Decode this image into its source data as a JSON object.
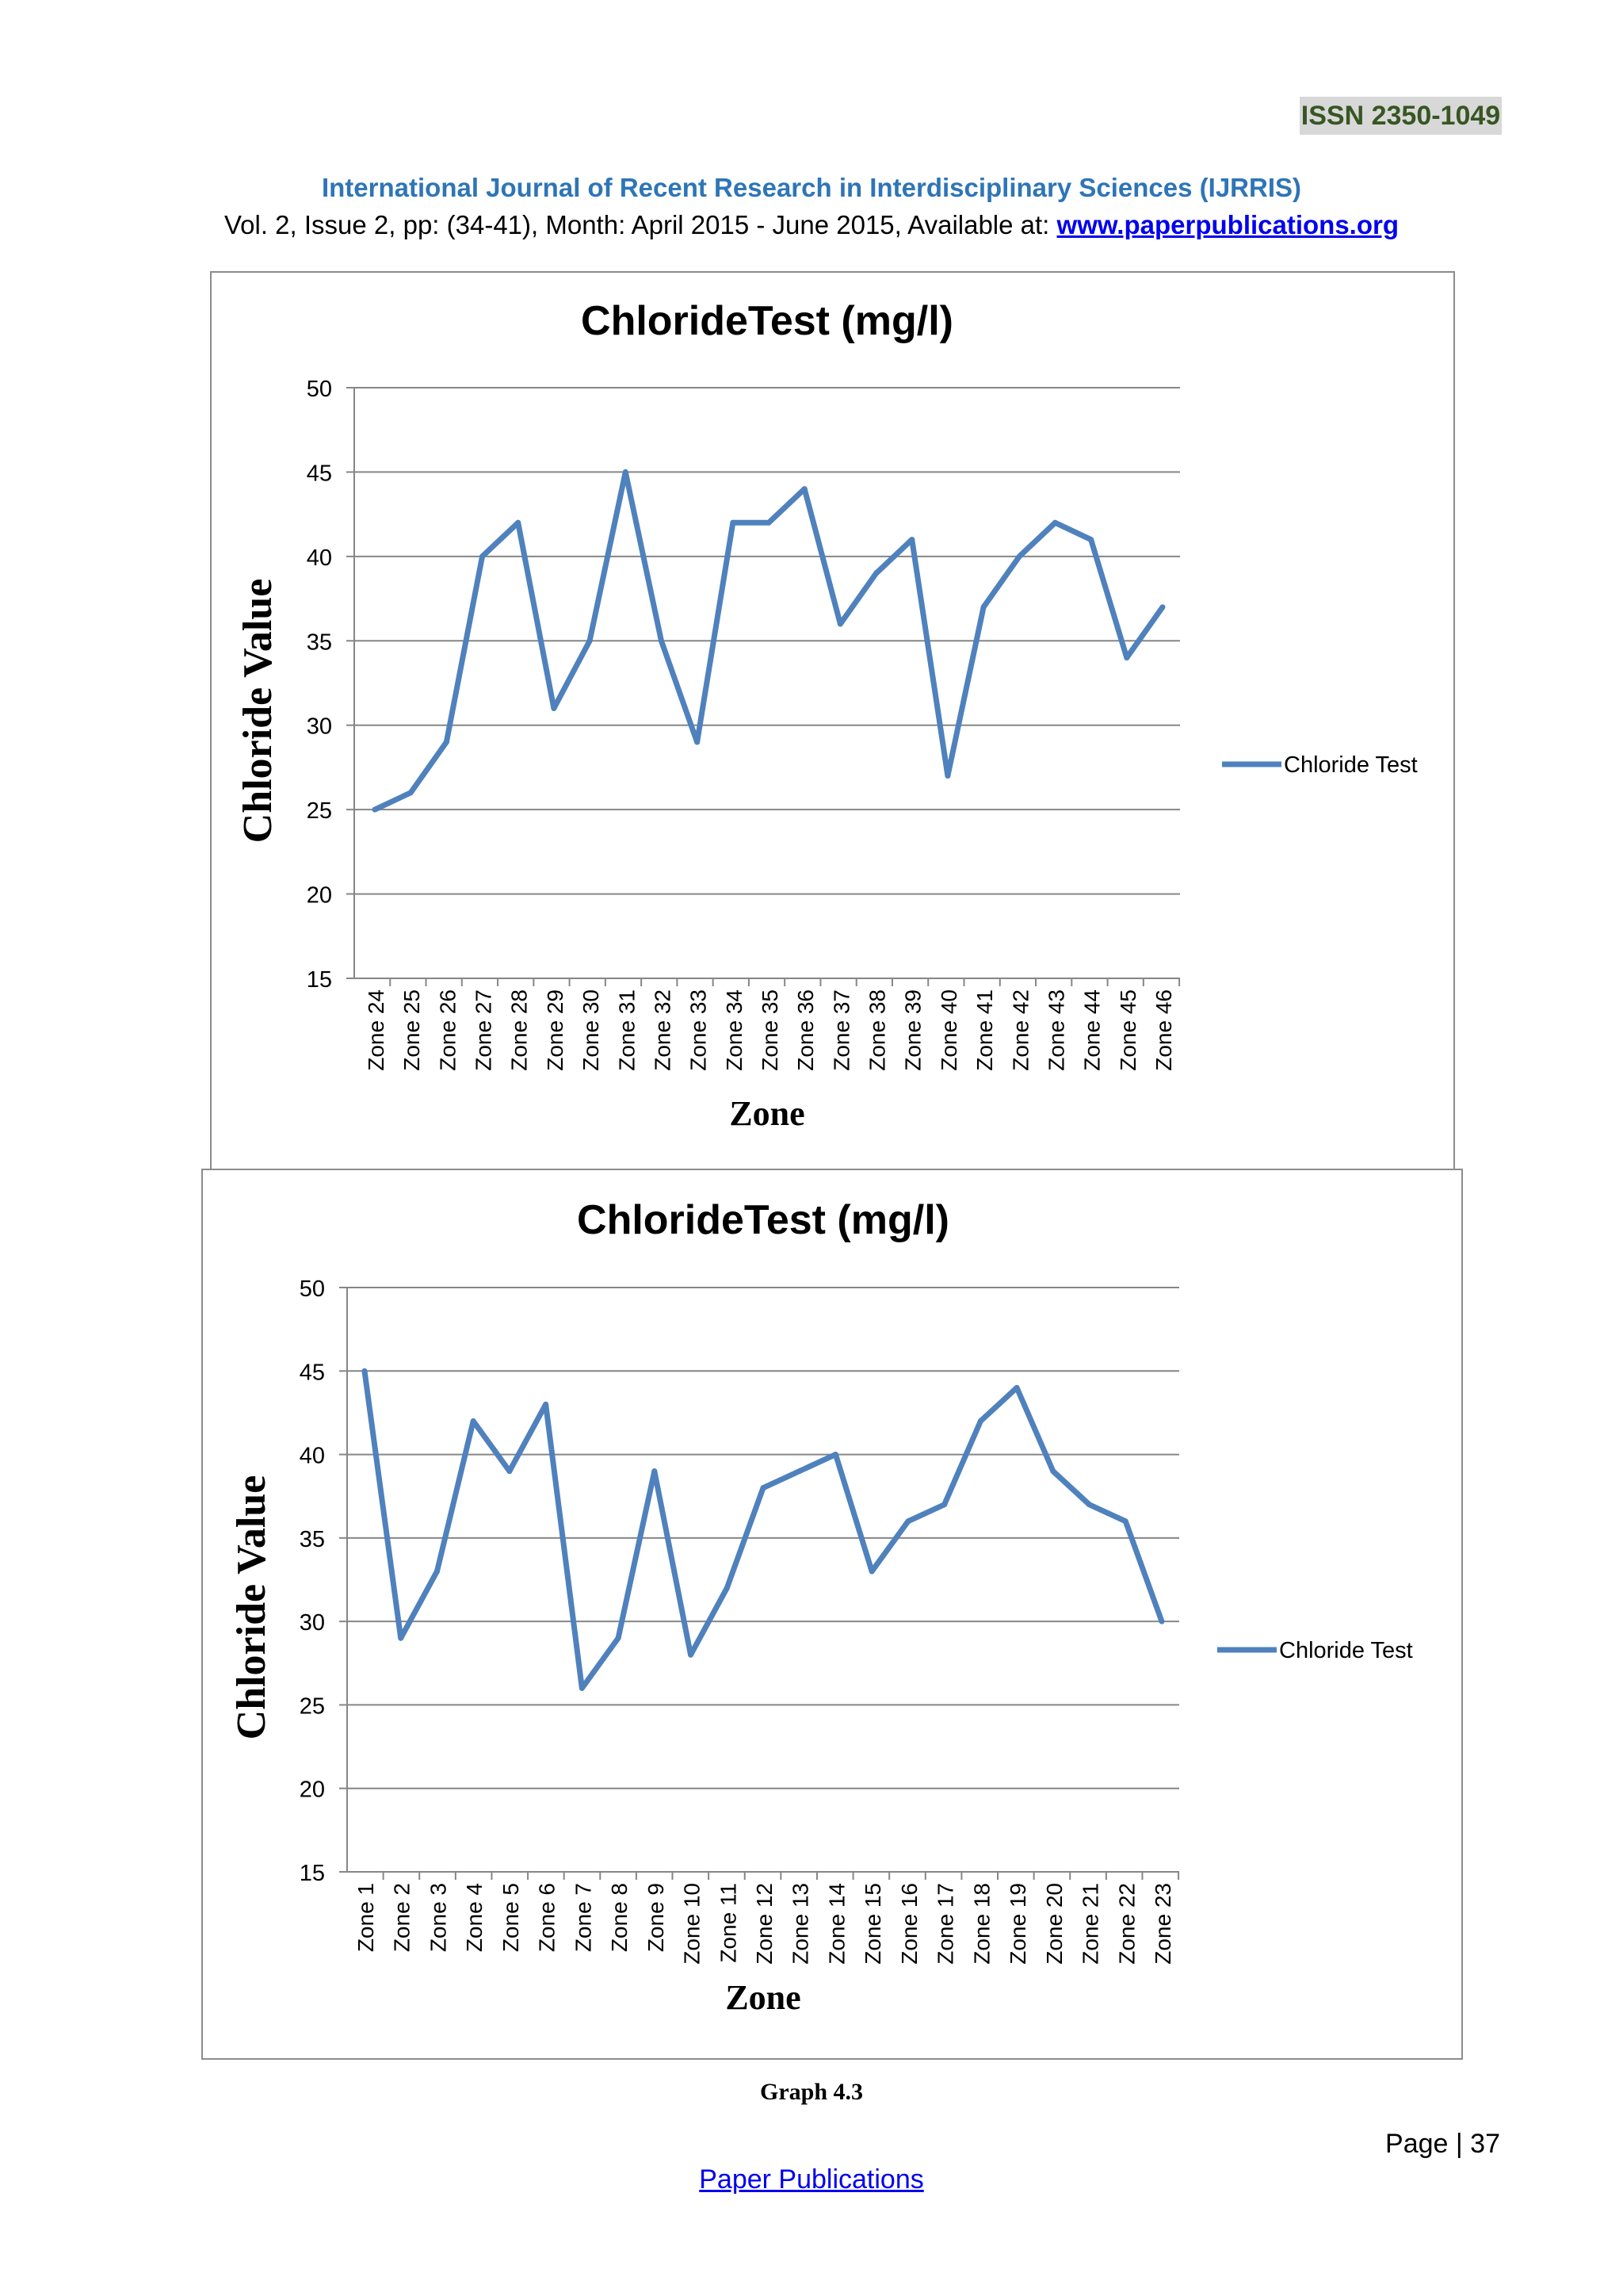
{
  "header": {
    "issn": "ISSN  2350-1049",
    "journal_title": "International Journal of Recent Research in Interdisciplinary Sciences (IJRRIS)",
    "volume_info": "Vol. 2, Issue 2, pp: (34-41), Month: April 2015  - June 2015, Available at: ",
    "website": "www.paperpublications.org"
  },
  "chart_data": [
    {
      "type": "line",
      "title": "ChlorideTest (mg/l)",
      "xlabel": "Zone",
      "ylabel": "Chloride Value",
      "ylim": [
        15,
        50
      ],
      "yticks": [
        "15",
        "20",
        "25",
        "30",
        "35",
        "40",
        "45",
        "50"
      ],
      "grid": true,
      "legend_position": "right",
      "color": "#4f81bd",
      "categories": [
        "Zone 24",
        "Zone 25",
        "Zone 26",
        "Zone 27",
        "Zone 28",
        "Zone 29",
        "Zone 30",
        "Zone 31",
        "Zone 32",
        "Zone 33",
        "Zone 34",
        "Zone 35",
        "Zone 36",
        "Zone 37",
        "Zone 38",
        "Zone 39",
        "Zone 40",
        "Zone 41",
        "Zone 42",
        "Zone 43",
        "Zone 44",
        "Zone 45",
        "Zone 46"
      ],
      "series": [
        {
          "name": "Chloride Test",
          "values": [
            25,
            26,
            29,
            40,
            42,
            31,
            35,
            45,
            35,
            29,
            42,
            42,
            44,
            36,
            39,
            41,
            27,
            37,
            40,
            42,
            41,
            34,
            37
          ]
        }
      ]
    },
    {
      "type": "line",
      "title": "ChlorideTest (mg/l)",
      "xlabel": "Zone",
      "ylabel": "Chloride Value",
      "ylim": [
        15,
        50
      ],
      "yticks": [
        "15",
        "20",
        "25",
        "30",
        "35",
        "40",
        "45",
        "50"
      ],
      "grid": true,
      "legend_position": "right",
      "color": "#4f81bd",
      "categories": [
        "Zone 1",
        "Zone 2",
        "Zone 3",
        "Zone 4",
        "Zone 5",
        "Zone 6",
        "Zone 7",
        "Zone 8",
        "Zone 9",
        "Zone 10",
        "Zone 11",
        "Zone 12",
        "Zone 13",
        "Zone 14",
        "Zone 15",
        "Zone 16",
        "Zone 17",
        "Zone 18",
        "Zone 19",
        "Zone 20",
        "Zone 21",
        "Zone 22",
        "Zone 23"
      ],
      "series": [
        {
          "name": "Chloride Test",
          "values": [
            45,
            29,
            33,
            42,
            39,
            43,
            26,
            29,
            39,
            28,
            32,
            38,
            39,
            40,
            33,
            36,
            37,
            42,
            44,
            39,
            37,
            36,
            30
          ]
        }
      ]
    }
  ],
  "footer": {
    "caption": "Graph 4.3",
    "page_number": "Page | 37",
    "publisher": "Paper Publications"
  }
}
